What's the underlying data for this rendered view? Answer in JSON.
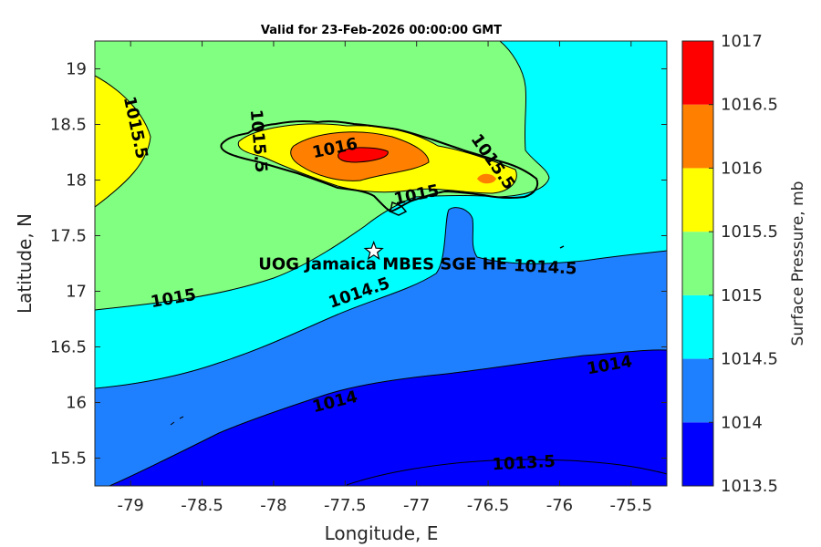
{
  "title": "Valid for 23-Feb-2026 00:00:00 GMT",
  "xlabel": "Longitude, E",
  "ylabel": "Latitude, N",
  "colorbar_label": "Surface Pressure, mb",
  "site_label": "UOG Jamaica MBES SGE HE",
  "colors": {
    "c1013_5": "#0000ff",
    "c1014": "#1f80ff",
    "c1014_5": "#00ffff",
    "c1015": "#80ff80",
    "c1015_5": "#ffff00",
    "c1016": "#ff8000",
    "c1016_5": "#ff0000",
    "c1017": "#800000"
  },
  "chart_data": {
    "type": "contour-map",
    "title": "Valid for 23-Feb-2026 00:00:00 GMT",
    "xlabel": "Longitude, E",
    "ylabel": "Latitude, N",
    "xlim": [
      -79.25,
      -75.25
    ],
    "ylim": [
      15.25,
      19.25
    ],
    "xticks": [
      -79,
      -78.5,
      -78,
      -77.5,
      -77,
      -76.5,
      -76,
      -75.5
    ],
    "yticks": [
      15.5,
      16,
      16.5,
      17,
      17.5,
      18,
      18.5,
      19
    ],
    "xtick_labels": [
      "-79",
      "-78.5",
      "-78",
      "-77.5",
      "-77",
      "-76.5",
      "-76",
      "-75.5"
    ],
    "ytick_labels": [
      "15.5",
      "16",
      "16.5",
      "17",
      "17.5",
      "18",
      "18.5",
      "19"
    ],
    "colorbar": {
      "label": "Surface Pressure, mb",
      "levels": [
        1013.5,
        1014,
        1014.5,
        1015,
        1015.5,
        1016,
        1016.5,
        1017
      ],
      "tick_labels": [
        "1013.5",
        "1014",
        "1014.5",
        "1015",
        "1015.5",
        "1016",
        "1016.5",
        "1017"
      ]
    },
    "contour_labels": [
      {
        "text": "1013.5",
        "lon": -76.25,
        "lat": 15.45
      },
      {
        "text": "1014",
        "lon": -77.57,
        "lat": 16.0
      },
      {
        "text": "1014",
        "lon": -75.65,
        "lat": 16.33
      },
      {
        "text": "1014.5",
        "lon": -77.4,
        "lat": 16.98
      },
      {
        "text": "1014.5",
        "lon": -76.1,
        "lat": 17.21
      },
      {
        "text": "1015",
        "lon": -78.7,
        "lat": 16.93
      },
      {
        "text": "1015",
        "lon": -77.0,
        "lat": 17.86
      },
      {
        "text": "1015.5",
        "lon": -78.97,
        "lat": 18.47
      },
      {
        "text": "1015.5",
        "lon": -78.11,
        "lat": 18.35
      },
      {
        "text": "1015.5",
        "lon": -76.47,
        "lat": 18.16
      },
      {
        "text": "1016",
        "lon": -77.57,
        "lat": 18.28
      }
    ],
    "site": {
      "name": "UOG Jamaica MBES SGE HE",
      "lon": -77.3,
      "lat": 17.36
    }
  }
}
